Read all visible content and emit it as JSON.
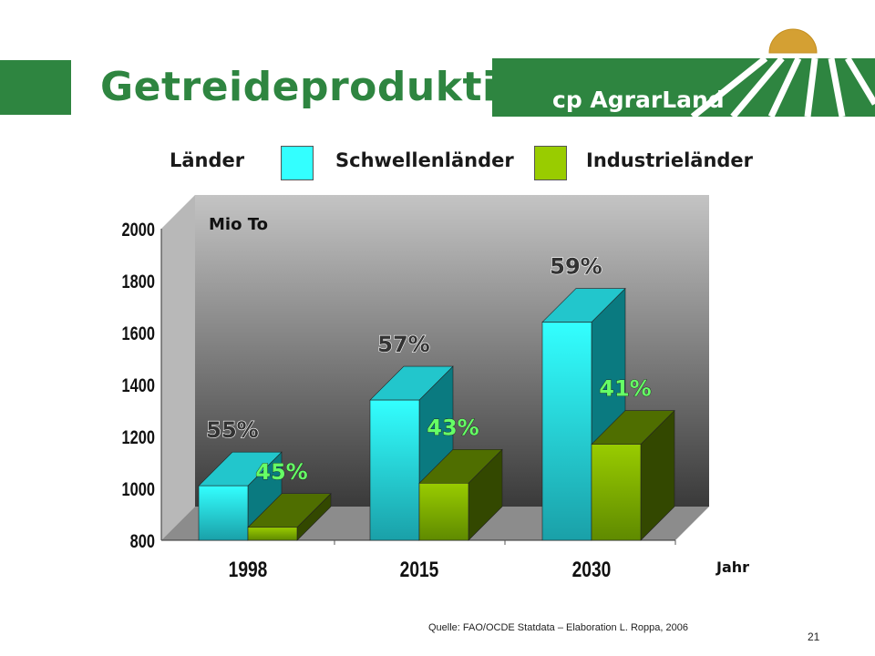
{
  "title": "Getreideproduktion",
  "logo": {
    "text": "cp AgrarLand",
    "bg": "#2e8540",
    "sun": "#d4a033"
  },
  "legend": {
    "label": "Länder",
    "items": [
      {
        "name": "Schwellenländer",
        "color": "#33ffff"
      },
      {
        "name": "Industrieländer",
        "color": "#99cc00"
      }
    ]
  },
  "chart_data": {
    "type": "bar",
    "unit_label": "Mio To",
    "xlabel": "Jahr",
    "categories": [
      "1998",
      "2015",
      "2030"
    ],
    "ylim": [
      800,
      2000
    ],
    "yticks": [
      800,
      1000,
      1200,
      1400,
      1600,
      1800,
      2000
    ],
    "series": [
      {
        "name": "Schwellenländer",
        "values": [
          1010,
          1340,
          1640
        ],
        "shares": [
          "55%",
          "57%",
          "59%"
        ]
      },
      {
        "name": "Industrieländer",
        "values": [
          850,
          1020,
          1170
        ],
        "shares": [
          "45%",
          "43%",
          "41%"
        ]
      }
    ],
    "colors": {
      "Schwellenländer": "#33ffff",
      "Industrieländer": "#99cc00"
    },
    "grid": false
  },
  "footer": {
    "source": "Quelle: FAO/OCDE Statdata – Elaboration L. Roppa, 2006",
    "page": "21"
  }
}
